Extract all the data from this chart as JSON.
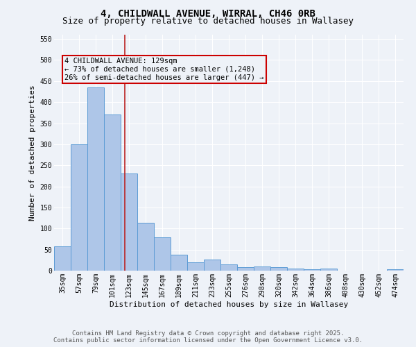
{
  "title_line1": "4, CHILDWALL AVENUE, WIRRAL, CH46 0RB",
  "title_line2": "Size of property relative to detached houses in Wallasey",
  "xlabel": "Distribution of detached houses by size in Wallasey",
  "ylabel": "Number of detached properties",
  "bins": [
    "35sqm",
    "57sqm",
    "79sqm",
    "101sqm",
    "123sqm",
    "145sqm",
    "167sqm",
    "189sqm",
    "211sqm",
    "233sqm",
    "255sqm",
    "276sqm",
    "298sqm",
    "320sqm",
    "342sqm",
    "364sqm",
    "386sqm",
    "408sqm",
    "430sqm",
    "452sqm",
    "474sqm"
  ],
  "values": [
    58,
    300,
    435,
    370,
    230,
    113,
    79,
    38,
    20,
    26,
    15,
    8,
    10,
    9,
    5,
    4,
    5,
    0,
    0,
    0,
    3
  ],
  "bar_color": "#aec6e8",
  "bar_edge_color": "#5b9bd5",
  "red_line_x": 3.77,
  "red_line_color": "#bb2222",
  "annotation_text": "4 CHILDWALL AVENUE: 129sqm\n← 73% of detached houses are smaller (1,248)\n26% of semi-detached houses are larger (447) →",
  "annotation_box_color": "#cc0000",
  "footer_line1": "Contains HM Land Registry data © Crown copyright and database right 2025.",
  "footer_line2": "Contains public sector information licensed under the Open Government Licence v3.0.",
  "ylim": [
    0,
    560
  ],
  "yticks": [
    0,
    50,
    100,
    150,
    200,
    250,
    300,
    350,
    400,
    450,
    500,
    550
  ],
  "background_color": "#eef2f8",
  "grid_color": "#ffffff",
  "title_fontsize": 10,
  "subtitle_fontsize": 9,
  "axis_label_fontsize": 8,
  "tick_fontsize": 7,
  "footer_fontsize": 6.5,
  "annotation_fontsize": 7.5
}
